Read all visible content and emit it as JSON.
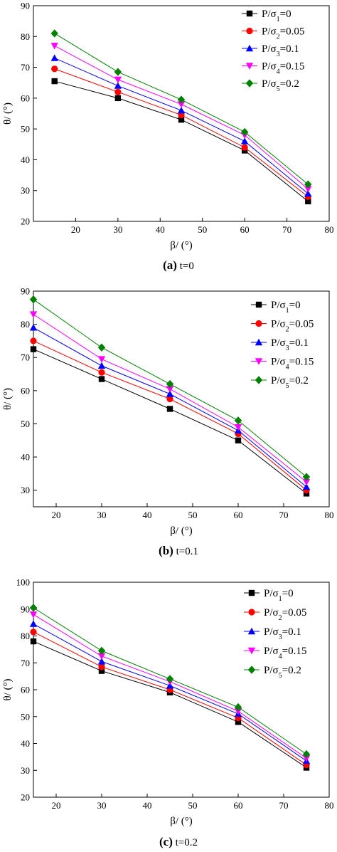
{
  "chart_data": [
    {
      "type": "line",
      "caption_letter": "(a)",
      "caption_text": "t=0",
      "xlabel": "β/ (°)",
      "ylabel": "θ/ (°)",
      "xlim": [
        10,
        80
      ],
      "ylim": [
        20,
        90
      ],
      "xticks": [
        20,
        30,
        40,
        50,
        60,
        70,
        80
      ],
      "yticks": [
        20,
        30,
        40,
        50,
        60,
        70,
        80,
        90
      ],
      "x": [
        15,
        30,
        45,
        60,
        75
      ],
      "legend_position": "top-right",
      "series": [
        {
          "name": "P/σ₁=0",
          "label_parts": [
            "P/σ",
            "1",
            "=0"
          ],
          "color": "#000000",
          "marker": "square",
          "values": [
            65.5,
            60,
            53,
            43,
            26.5
          ]
        },
        {
          "name": "P/σ₂=0.05",
          "label_parts": [
            "P/σ",
            "2",
            "=0.05"
          ],
          "color": "#ff0000",
          "marker": "circle",
          "values": [
            69.5,
            62,
            54.5,
            44,
            28
          ]
        },
        {
          "name": "P/σ₃=0.1",
          "label_parts": [
            "P/σ",
            "3",
            "=0.1"
          ],
          "color": "#0000ff",
          "marker": "triangle-up",
          "values": [
            73,
            64,
            56,
            46,
            29
          ]
        },
        {
          "name": "P/σ₄=0.15",
          "label_parts": [
            "P/σ",
            "4",
            "=0.15"
          ],
          "color": "#ff00ff",
          "marker": "triangle-down",
          "values": [
            77,
            66,
            58,
            48,
            30.5
          ]
        },
        {
          "name": "P/σ₅=0.2",
          "label_parts": [
            "P/σ",
            "5",
            "=0.2"
          ],
          "color": "#008000",
          "marker": "diamond",
          "values": [
            81,
            68.5,
            59.5,
            49,
            32
          ]
        }
      ]
    },
    {
      "type": "line",
      "caption_letter": "(b)",
      "caption_text": "t=0.1",
      "xlabel": "β/ (°)",
      "ylabel": "θ/ (°)",
      "xlim": [
        15,
        80
      ],
      "ylim": [
        25,
        90
      ],
      "xticks": [
        20,
        30,
        40,
        50,
        60,
        70,
        80
      ],
      "yticks": [
        30,
        40,
        50,
        60,
        70,
        80,
        90
      ],
      "x": [
        15,
        30,
        45,
        60,
        75
      ],
      "legend_position": "top-right",
      "series": [
        {
          "name": "P/σ₁=0",
          "label_parts": [
            "P/σ",
            "1",
            "=0"
          ],
          "color": "#000000",
          "marker": "square",
          "values": [
            72.5,
            63.5,
            54.5,
            45,
            29
          ]
        },
        {
          "name": "P/σ₂=0.05",
          "label_parts": [
            "P/σ",
            "2",
            "=0.05"
          ],
          "color": "#ff0000",
          "marker": "circle",
          "values": [
            75,
            65.5,
            57.5,
            47,
            30
          ]
        },
        {
          "name": "P/σ₃=0.1",
          "label_parts": [
            "P/σ",
            "3",
            "=0.1"
          ],
          "color": "#0000ff",
          "marker": "triangle-up",
          "values": [
            79,
            67.5,
            59,
            48,
            31
          ]
        },
        {
          "name": "P/σ₄=0.15",
          "label_parts": [
            "P/σ",
            "4",
            "=0.15"
          ],
          "color": "#ff00ff",
          "marker": "triangle-down",
          "values": [
            83,
            69.5,
            60.5,
            49,
            32.5
          ]
        },
        {
          "name": "P/σ₅=0.2",
          "label_parts": [
            "P/σ",
            "5",
            "=0.2"
          ],
          "color": "#008000",
          "marker": "diamond",
          "values": [
            87.5,
            73,
            62,
            51,
            34
          ]
        }
      ]
    },
    {
      "type": "line",
      "caption_letter": "(c)",
      "caption_text": "t=0.2",
      "xlabel": "β/ (°)",
      "ylabel": "θ/ (°)",
      "xlim": [
        15,
        80
      ],
      "ylim": [
        20,
        100
      ],
      "xticks": [
        20,
        30,
        40,
        50,
        60,
        70,
        80
      ],
      "yticks": [
        20,
        30,
        40,
        50,
        60,
        70,
        80,
        90,
        100
      ],
      "x": [
        15,
        30,
        45,
        60,
        75
      ],
      "legend_position": "top-right",
      "series": [
        {
          "name": "P/σ₁=0",
          "label_parts": [
            "P/σ",
            "1",
            "=0"
          ],
          "color": "#000000",
          "marker": "square",
          "values": [
            78,
            67,
            59,
            48,
            31
          ]
        },
        {
          "name": "P/σ₂=0.05",
          "label_parts": [
            "P/σ",
            "2",
            "=0.05"
          ],
          "color": "#ff0000",
          "marker": "circle",
          "values": [
            81.5,
            68.5,
            60,
            49.5,
            32
          ]
        },
        {
          "name": "P/σ₃=0.1",
          "label_parts": [
            "P/σ",
            "3",
            "=0.1"
          ],
          "color": "#0000ff",
          "marker": "triangle-up",
          "values": [
            84.5,
            70.5,
            61.5,
            51,
            33.5
          ]
        },
        {
          "name": "P/σ₄=0.15",
          "label_parts": [
            "P/σ",
            "4",
            "=0.15"
          ],
          "color": "#ff00ff",
          "marker": "triangle-down",
          "values": [
            88,
            72.5,
            63,
            52,
            34.5
          ]
        },
        {
          "name": "P/σ₅=0.2",
          "label_parts": [
            "P/σ",
            "5",
            "=0.2"
          ],
          "color": "#008000",
          "marker": "diamond",
          "values": [
            90.5,
            74.5,
            64,
            53.5,
            36
          ]
        }
      ]
    }
  ]
}
